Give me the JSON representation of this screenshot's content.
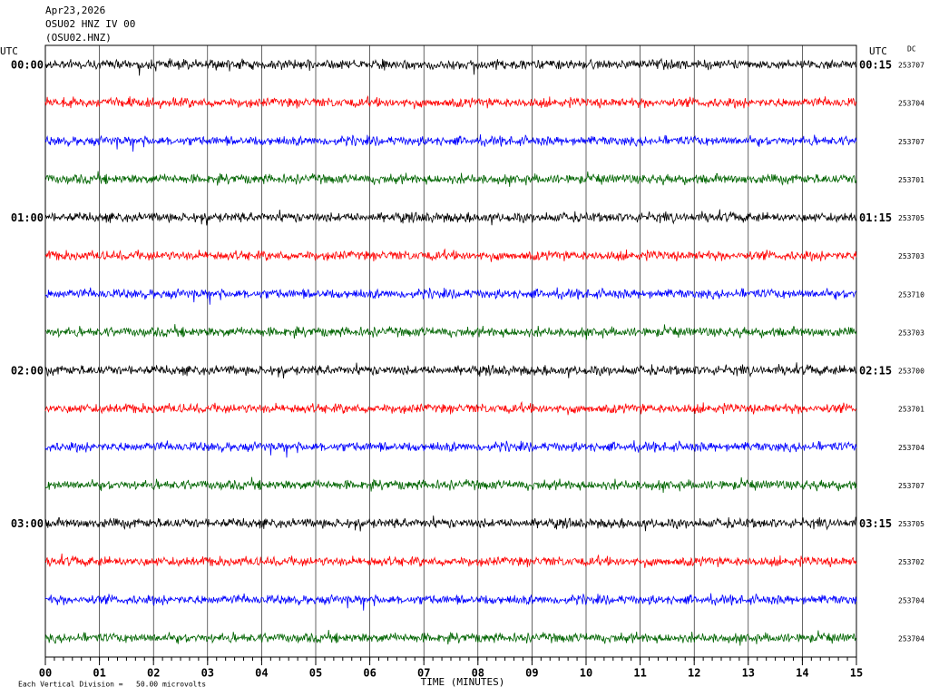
{
  "header": {
    "date": "Apr23,2026",
    "station": "OSU02 HNZ IV 00",
    "channel": "(OSU02.HNZ)"
  },
  "chart_data": {
    "type": "helicorder",
    "left_axis_label": "UTC",
    "right_axis_label": "UTC",
    "dc_label": "DC",
    "xlabel": "TIME (MINUTES)",
    "xlim": [
      0,
      15
    ],
    "xticks": [
      {
        "value": 0,
        "label": "00"
      },
      {
        "value": 1,
        "label": "01"
      },
      {
        "value": 2,
        "label": "02"
      },
      {
        "value": 3,
        "label": "03"
      },
      {
        "value": 4,
        "label": "04"
      },
      {
        "value": 5,
        "label": "05"
      },
      {
        "value": 6,
        "label": "06"
      },
      {
        "value": 7,
        "label": "07"
      },
      {
        "value": 8,
        "label": "08"
      },
      {
        "value": 9,
        "label": "09"
      },
      {
        "value": 10,
        "label": "10"
      },
      {
        "value": 11,
        "label": "11"
      },
      {
        "value": 12,
        "label": "12"
      },
      {
        "value": 13,
        "label": "13"
      },
      {
        "value": 14,
        "label": "14"
      },
      {
        "value": 15,
        "label": "15"
      }
    ],
    "rows": [
      {
        "left": "00:00",
        "right": "00:15",
        "dc": 253707,
        "color": "#000000"
      },
      {
        "dc": 253704,
        "color": "#ff0000"
      },
      {
        "dc": 253707,
        "color": "#0000ff"
      },
      {
        "dc": 253701,
        "color": "#006400"
      },
      {
        "left": "01:00",
        "right": "01:15",
        "dc": 253705,
        "color": "#000000"
      },
      {
        "dc": 253703,
        "color": "#ff0000"
      },
      {
        "dc": 253710,
        "color": "#0000ff"
      },
      {
        "dc": 253703,
        "color": "#006400"
      },
      {
        "left": "02:00",
        "right": "02:15",
        "dc": 253700,
        "color": "#000000"
      },
      {
        "dc": 253701,
        "color": "#ff0000"
      },
      {
        "dc": 253704,
        "color": "#0000ff"
      },
      {
        "dc": 253707,
        "color": "#006400"
      },
      {
        "left": "03:00",
        "right": "03:15",
        "dc": 253705,
        "color": "#000000"
      },
      {
        "dc": 253702,
        "color": "#ff0000"
      },
      {
        "dc": 253704,
        "color": "#0000ff"
      },
      {
        "dc": 253704,
        "color": "#006400"
      }
    ],
    "footer": "Each Vertical Division =   50.00 microvolts"
  }
}
